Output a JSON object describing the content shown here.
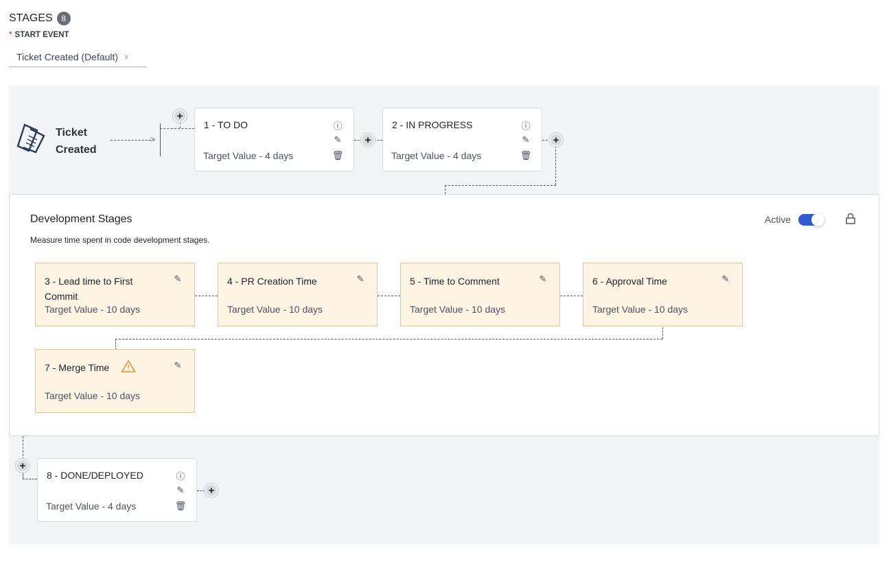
{
  "header": {
    "title": "STAGES",
    "count": "8",
    "start_event_label": "START EVENT",
    "start_event_value": "Ticket Created (Default)"
  },
  "start": {
    "line1": "Ticket",
    "line2": "Created",
    "icon": "ticket-icon"
  },
  "stages_top": [
    {
      "name": "1 - TO DO",
      "target": "Target Value - 4 days"
    },
    {
      "name": "2 - IN PROGRESS",
      "target": "Target Value - 4 days"
    }
  ],
  "dev": {
    "title": "Development Stages",
    "description": "Measure time spent in code development stages.",
    "active_label": "Active",
    "active": true,
    "accent": "#2f5bd3",
    "stages": [
      {
        "name": "3 - Lead time to First Commit",
        "target": "Target Value - 10 days"
      },
      {
        "name": "4 - PR Creation Time",
        "target": "Target Value - 10 days"
      },
      {
        "name": "5 - Time to Comment",
        "target": "Target Value - 10 days"
      },
      {
        "name": "6 - Approval Time",
        "target": "Target Value - 10 days"
      },
      {
        "name": "7 - Merge Time",
        "target": "Target Value - 10 days",
        "warning": true
      }
    ]
  },
  "stage_end": {
    "name": "8 - DONE/DEPLOYED",
    "target": "Target Value - 4 days"
  }
}
